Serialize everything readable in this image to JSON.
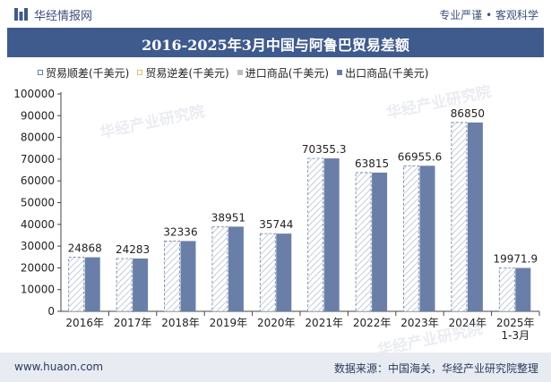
{
  "header": {
    "brand": "华经情报网",
    "tagline": "专业严谨 • 客观科学"
  },
  "footer": {
    "url": "www.huaon.com",
    "source": "数据来源：中国海关，华经产业研究院整理"
  },
  "watermark": "华经产业研究院",
  "colors": {
    "export": "#6a7fa8",
    "surplus_border": "#6a7fa8",
    "surplus_hatch": "#c9d2e3",
    "deficit": "#e8d7a4",
    "import": "#b8bec9",
    "axis": "#444444"
  },
  "chart_data": {
    "type": "bar",
    "title": "2016-2025年3月中国与阿鲁巴贸易差额",
    "categories": [
      "2016年",
      "2017年",
      "2018年",
      "2019年",
      "2020年",
      "2021年",
      "2022年",
      "2023年",
      "2024年",
      "2025年\n1-3月"
    ],
    "series": [
      {
        "name": "贸易顺差(千美元)",
        "values": [
          24868,
          24283,
          32336,
          38951,
          35744,
          70355.3,
          63815,
          66955.6,
          86850,
          19971.9
        ]
      },
      {
        "name": "贸易逆差(千美元)",
        "values": [
          0,
          0,
          0,
          0,
          0,
          0,
          0,
          0,
          0,
          0
        ]
      },
      {
        "name": "进口商品(千美元)",
        "values": [
          0,
          0,
          0,
          0,
          0,
          0,
          0,
          0,
          0,
          0
        ]
      },
      {
        "name": "出口商品(千美元)",
        "values": [
          24868,
          24283,
          32336,
          38951,
          35744,
          70355.3,
          63815,
          66955.6,
          86850,
          19971.9
        ]
      }
    ],
    "data_labels": [
      "24868",
      "24283",
      "32336",
      "38951",
      "35744",
      "70355.3",
      "63815",
      "66955.6",
      "86850",
      "19971.9"
    ],
    "ylim": [
      0,
      100000
    ],
    "yticks": [
      "0",
      "10000",
      "20000",
      "30000",
      "40000",
      "50000",
      "60000",
      "70000",
      "80000",
      "90000",
      "100000"
    ],
    "grid": false,
    "legend_position": "top"
  }
}
